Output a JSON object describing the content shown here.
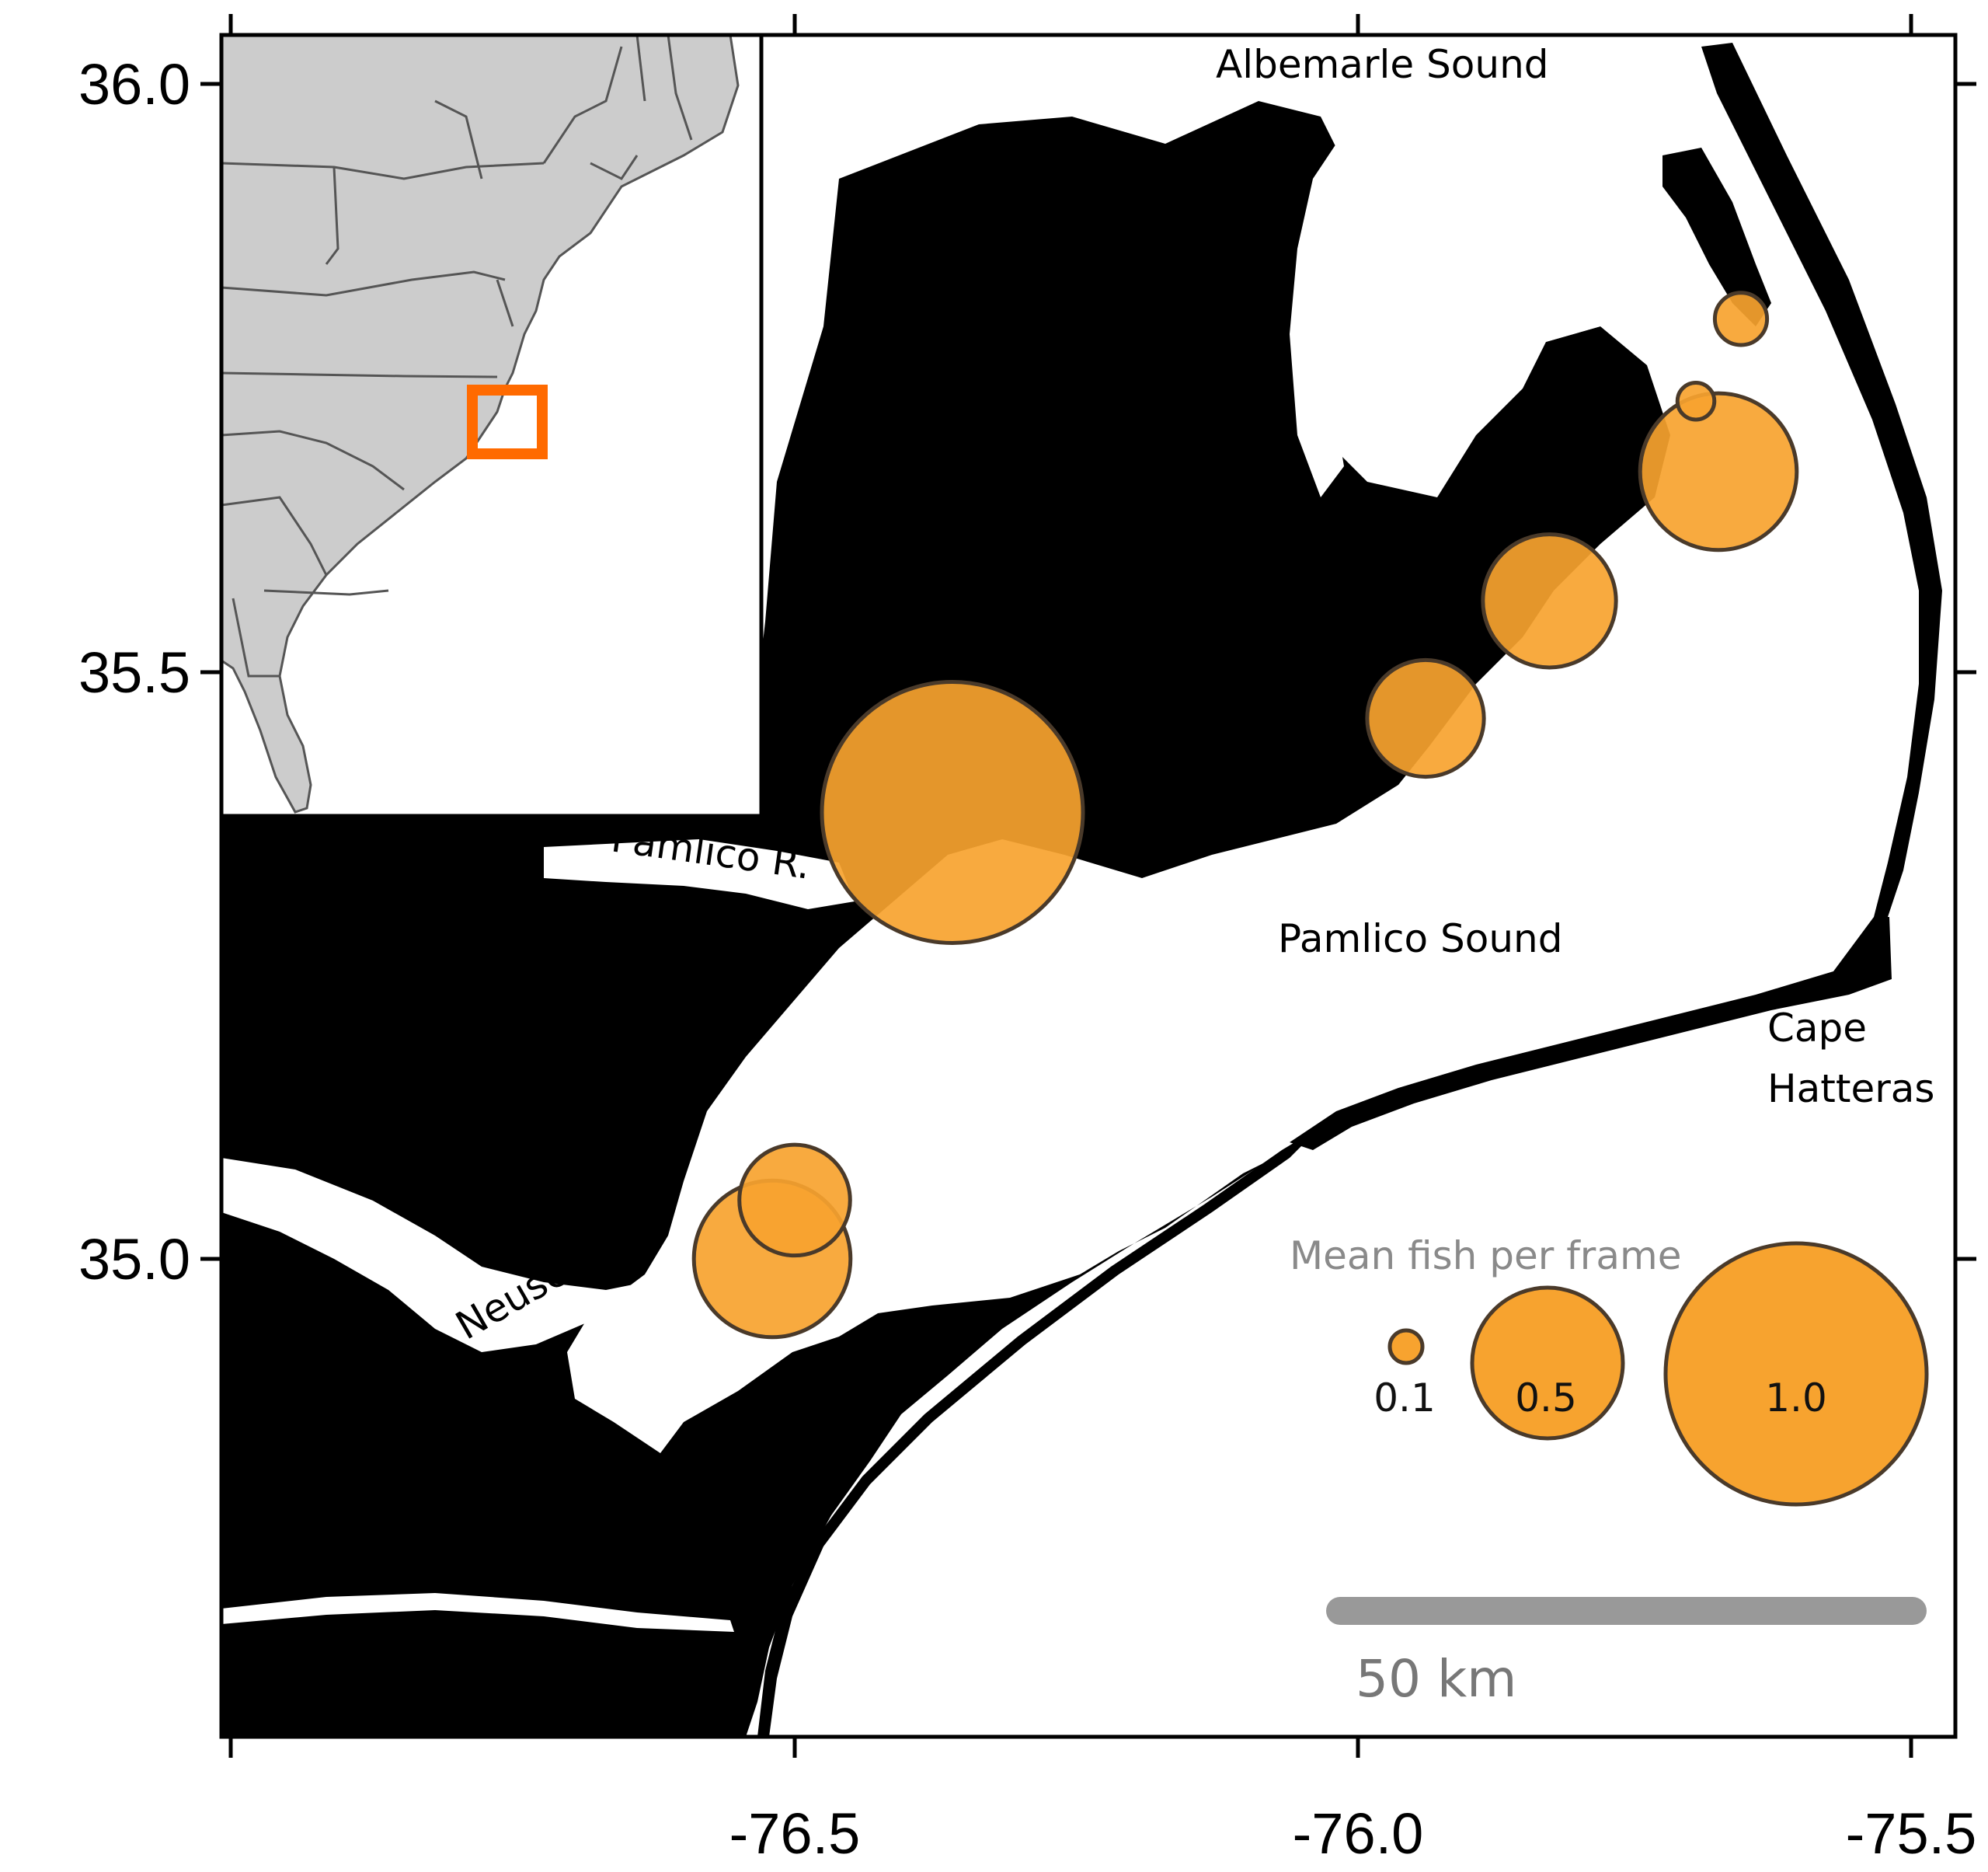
{
  "axes": {
    "x_ticks": [
      "-76.5",
      "-76.0",
      "-75.5"
    ],
    "y_ticks": [
      "36.0",
      "35.5",
      "35.0"
    ],
    "xlim": [
      -76.85,
      -75.45
    ],
    "ylim": [
      34.66,
      36.09
    ]
  },
  "labels": {
    "albemarle": "Albemarle Sound",
    "pamlico_r": "Pamlico R.",
    "pamlico_sound": "Pamlico Sound",
    "cape_line1": "Cape",
    "cape_line2": "Hatteras",
    "neuse_r": "Neuse R."
  },
  "legend": {
    "title": "Mean fish per frame",
    "items": [
      {
        "label": "0.1",
        "value": 0.1
      },
      {
        "label": "0.5",
        "value": 0.5
      },
      {
        "label": "1.0",
        "value": 1.0
      }
    ]
  },
  "scale_bar": {
    "label": "50 km"
  },
  "sites": [
    {
      "lon": -76.36,
      "lat": 35.38,
      "value": 1.0
    },
    {
      "lon": -75.94,
      "lat": 35.46,
      "value": 0.2
    },
    {
      "lon": -75.83,
      "lat": 35.56,
      "value": 0.26
    },
    {
      "lon": -75.68,
      "lat": 35.67,
      "value": 0.36
    },
    {
      "lon": -75.7,
      "lat": 35.73,
      "value": 0.02
    },
    {
      "lon": -75.66,
      "lat": 35.8,
      "value": 0.04
    },
    {
      "lon": -76.52,
      "lat": 35.0,
      "value": 0.36
    },
    {
      "lon": -76.5,
      "lat": 35.05,
      "value": 0.18
    }
  ],
  "colors": {
    "land": "#000000",
    "water": "#ffffff",
    "bubble_fill": "#f7a32f",
    "bubble_stroke": "#4a3a2a",
    "inset_land": "#cccccc",
    "inset_border": "#555555",
    "inset_highlight": "#ff6a00",
    "scale_bar": "#999999"
  }
}
